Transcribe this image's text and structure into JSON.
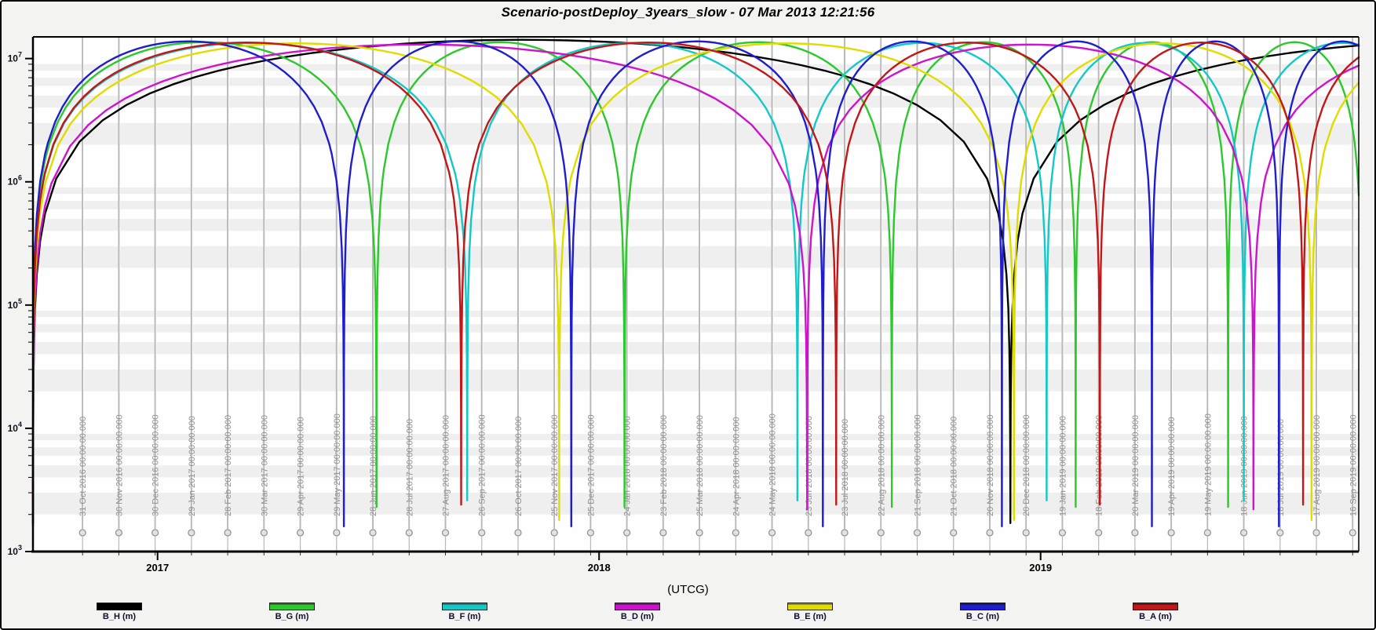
{
  "window": {
    "title": "Scenario-postDeploy_3years_slow - 07 Mar 2013 12:21:56"
  },
  "chart_data": {
    "type": "line",
    "title": "Scenario-postDeploy_3years_slow - 07 Mar 2013 12:21:56",
    "xlabel": "(UTCG)",
    "ylabel": "",
    "y_axis": {
      "scale": "log",
      "unit": "m",
      "top_value": 15000000.0,
      "bottom_value": 1000,
      "major_exponents": [
        7,
        6,
        5,
        4,
        3
      ],
      "minor_ticks": "2-9 per decade",
      "grid": "light horizontal bands at minor log intervals"
    },
    "x_axis": {
      "start_day": 0,
      "end_day": 1096,
      "gridline_spacing_days": 30,
      "gridlines": [
        {
          "day": 41,
          "label": "31 Oct 2016 00:00:00.000"
        },
        {
          "day": 71,
          "label": "30 Nov 2016 00:00:00.000"
        },
        {
          "day": 101,
          "label": "30 Dec 2016 00:00:00.000"
        },
        {
          "day": 131,
          "label": "29 Jan 2017 00:00:00.000"
        },
        {
          "day": 161,
          "label": "28 Feb 2017 00:00:00.000"
        },
        {
          "day": 191,
          "label": "30 Mar 2017 00:00:00.000"
        },
        {
          "day": 221,
          "label": "29 Apr 2017 00:00:00.000"
        },
        {
          "day": 251,
          "label": "29 May 2017 00:00:00.000"
        },
        {
          "day": 281,
          "label": "28 Jun 2017 00:00:00.000"
        },
        {
          "day": 311,
          "label": "28 Jul 2017 00:00:00.000"
        },
        {
          "day": 341,
          "label": "27 Aug 2017 00:00:00.000"
        },
        {
          "day": 371,
          "label": "26 Sep 2017 00:00:00.000"
        },
        {
          "day": 401,
          "label": "26 Oct 2017 00:00:00.000"
        },
        {
          "day": 431,
          "label": "25 Nov 2017 00:00:00.000"
        },
        {
          "day": 461,
          "label": "25 Dec 2017 00:00:00.000"
        },
        {
          "day": 491,
          "label": "24 Jan 2018 00:00:00.000"
        },
        {
          "day": 521,
          "label": "23 Feb 2018 00:00:00.000"
        },
        {
          "day": 551,
          "label": "25 Mar 2018 00:00:00.000"
        },
        {
          "day": 581,
          "label": "24 Apr 2018 00:00:00.000"
        },
        {
          "day": 611,
          "label": "24 May 2018 00:00:00.000"
        },
        {
          "day": 641,
          "label": "23 Jun 2018 00:00:00.000"
        },
        {
          "day": 671,
          "label": "23 Jul 2018 00:00:00.000"
        },
        {
          "day": 701,
          "label": "22 Aug 2018 00:00:00.000"
        },
        {
          "day": 731,
          "label": "21 Sep 2018 00:00:00.000"
        },
        {
          "day": 761,
          "label": "21 Oct 2018 00:00:00.000"
        },
        {
          "day": 791,
          "label": "20 Nov 2018 00:00:00.000"
        },
        {
          "day": 821,
          "label": "20 Dec 2018 00:00:00.000"
        },
        {
          "day": 851,
          "label": "19 Jan 2019 00:00:00.000"
        },
        {
          "day": 881,
          "label": "18 Feb 2019 00:00:00.000"
        },
        {
          "day": 911,
          "label": "20 Mar 2019 00:00:00.000"
        },
        {
          "day": 941,
          "label": "19 Apr 2019 00:00:00.000"
        },
        {
          "day": 971,
          "label": "19 May 2019 00:00:00.000"
        },
        {
          "day": 1001,
          "label": "18 Jun 2019 00:00:00.000"
        },
        {
          "day": 1031,
          "label": "18 Jul 2019 00:00:00.000"
        },
        {
          "day": 1061,
          "label": "17 Aug 2019 00:00:00.000"
        },
        {
          "day": 1091,
          "label": "16 Sep 2019 00:00:00.000"
        }
      ],
      "year_ticks": [
        {
          "day": 103,
          "label": "2017"
        },
        {
          "day": 468,
          "label": "2018"
        },
        {
          "day": 833,
          "label": "2019"
        }
      ]
    },
    "model": "inter-satellite separation: d(t) = max_separation_m * |sin(pi*(t - previous_conjunction)/interval)| between consecutive conjunction days, clipped below at min_separation_m; log10 y-axis",
    "legend_position": "bottom",
    "series": [
      {
        "name": "B_H",
        "label": "B_H (m)",
        "color": "#000000",
        "max_separation_m": 14200000.0,
        "min_separation_m": 1700,
        "conjunction_days": [
          808
        ]
      },
      {
        "name": "B_G",
        "label": "B_G (m)",
        "color": "#2cc82c",
        "max_separation_m": 13600000.0,
        "min_separation_m": 2300,
        "conjunction_days": [
          284,
          489,
          710,
          862,
          988,
          1098
        ]
      },
      {
        "name": "B_F",
        "label": "B_F (m)",
        "color": "#14c8c8",
        "max_separation_m": 13400000.0,
        "min_separation_m": 2600,
        "conjunction_days": [
          359,
          632,
          838,
          1001
        ]
      },
      {
        "name": "B_D",
        "label": "B_D (m)",
        "color": "#cc14cc",
        "max_separation_m": 13000000.0,
        "min_separation_m": 2200,
        "conjunction_days": [
          640,
          1009
        ]
      },
      {
        "name": "B_E",
        "label": "B_E (m)",
        "color": "#e0dc00",
        "max_separation_m": 13300000.0,
        "min_separation_m": 1800,
        "conjunction_days": [
          435,
          811,
          1057
        ]
      },
      {
        "name": "B_C",
        "label": "B_C (m)",
        "color": "#1e1ecc",
        "max_separation_m": 13800000.0,
        "min_separation_m": 1600,
        "conjunction_days": [
          257,
          445,
          653,
          801,
          925,
          1030
        ]
      },
      {
        "name": "B_A",
        "label": "B_A (m)",
        "color": "#c01818",
        "max_separation_m": 13500000.0,
        "min_separation_m": 2400,
        "conjunction_days": [
          354,
          664,
          882,
          1050
        ]
      }
    ],
    "colors": {
      "plot_background": "#fefefe",
      "stripe_band": "#efefef",
      "date_gridline": "#b8b8b8",
      "date_label": "#8f8f8f",
      "axis": "#000000",
      "outer_background": "#f3f3f2"
    }
  }
}
